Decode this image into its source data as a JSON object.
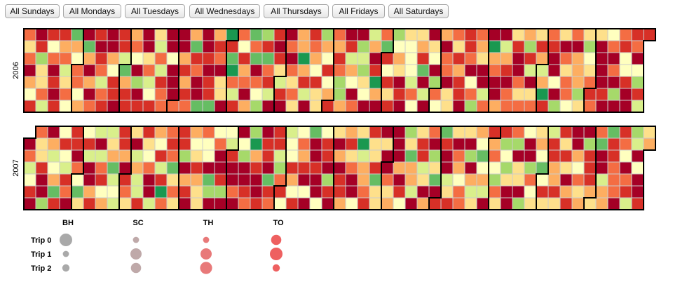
{
  "buttons": [
    {
      "label": "All Sundays"
    },
    {
      "label": "All Mondays"
    },
    {
      "label": "All Tuesdays"
    },
    {
      "label": "All Wednesdays"
    },
    {
      "label": "All Thursdays"
    },
    {
      "label": "All Fridays"
    },
    {
      "label": "All Saturdays"
    }
  ],
  "calendar": {
    "years": [
      "2006",
      "2007"
    ],
    "color_scale": [
      "#a50026",
      "#d73027",
      "#f46d43",
      "#fdae61",
      "#fee08b",
      "#ffffbf",
      "#d9ef8b",
      "#a6d96a",
      "#66bd63",
      "#1a9850"
    ]
  },
  "legend": {
    "columns": [
      "BH",
      "SC",
      "TH",
      "TO"
    ],
    "rows": [
      "Trip 0",
      "Trip 1",
      "Trip 2"
    ],
    "colors": {
      "BH": "#a0a0a0",
      "SC": "#b8a0a0",
      "TH": "#e66a6a",
      "TO": "#ec4f4f"
    },
    "sizes": [
      [
        1.0,
        0.35,
        0.35,
        0.75
      ],
      [
        0.35,
        0.85,
        0.85,
        1.0
      ],
      [
        0.45,
        0.75,
        0.95,
        0.45
      ]
    ]
  }
}
